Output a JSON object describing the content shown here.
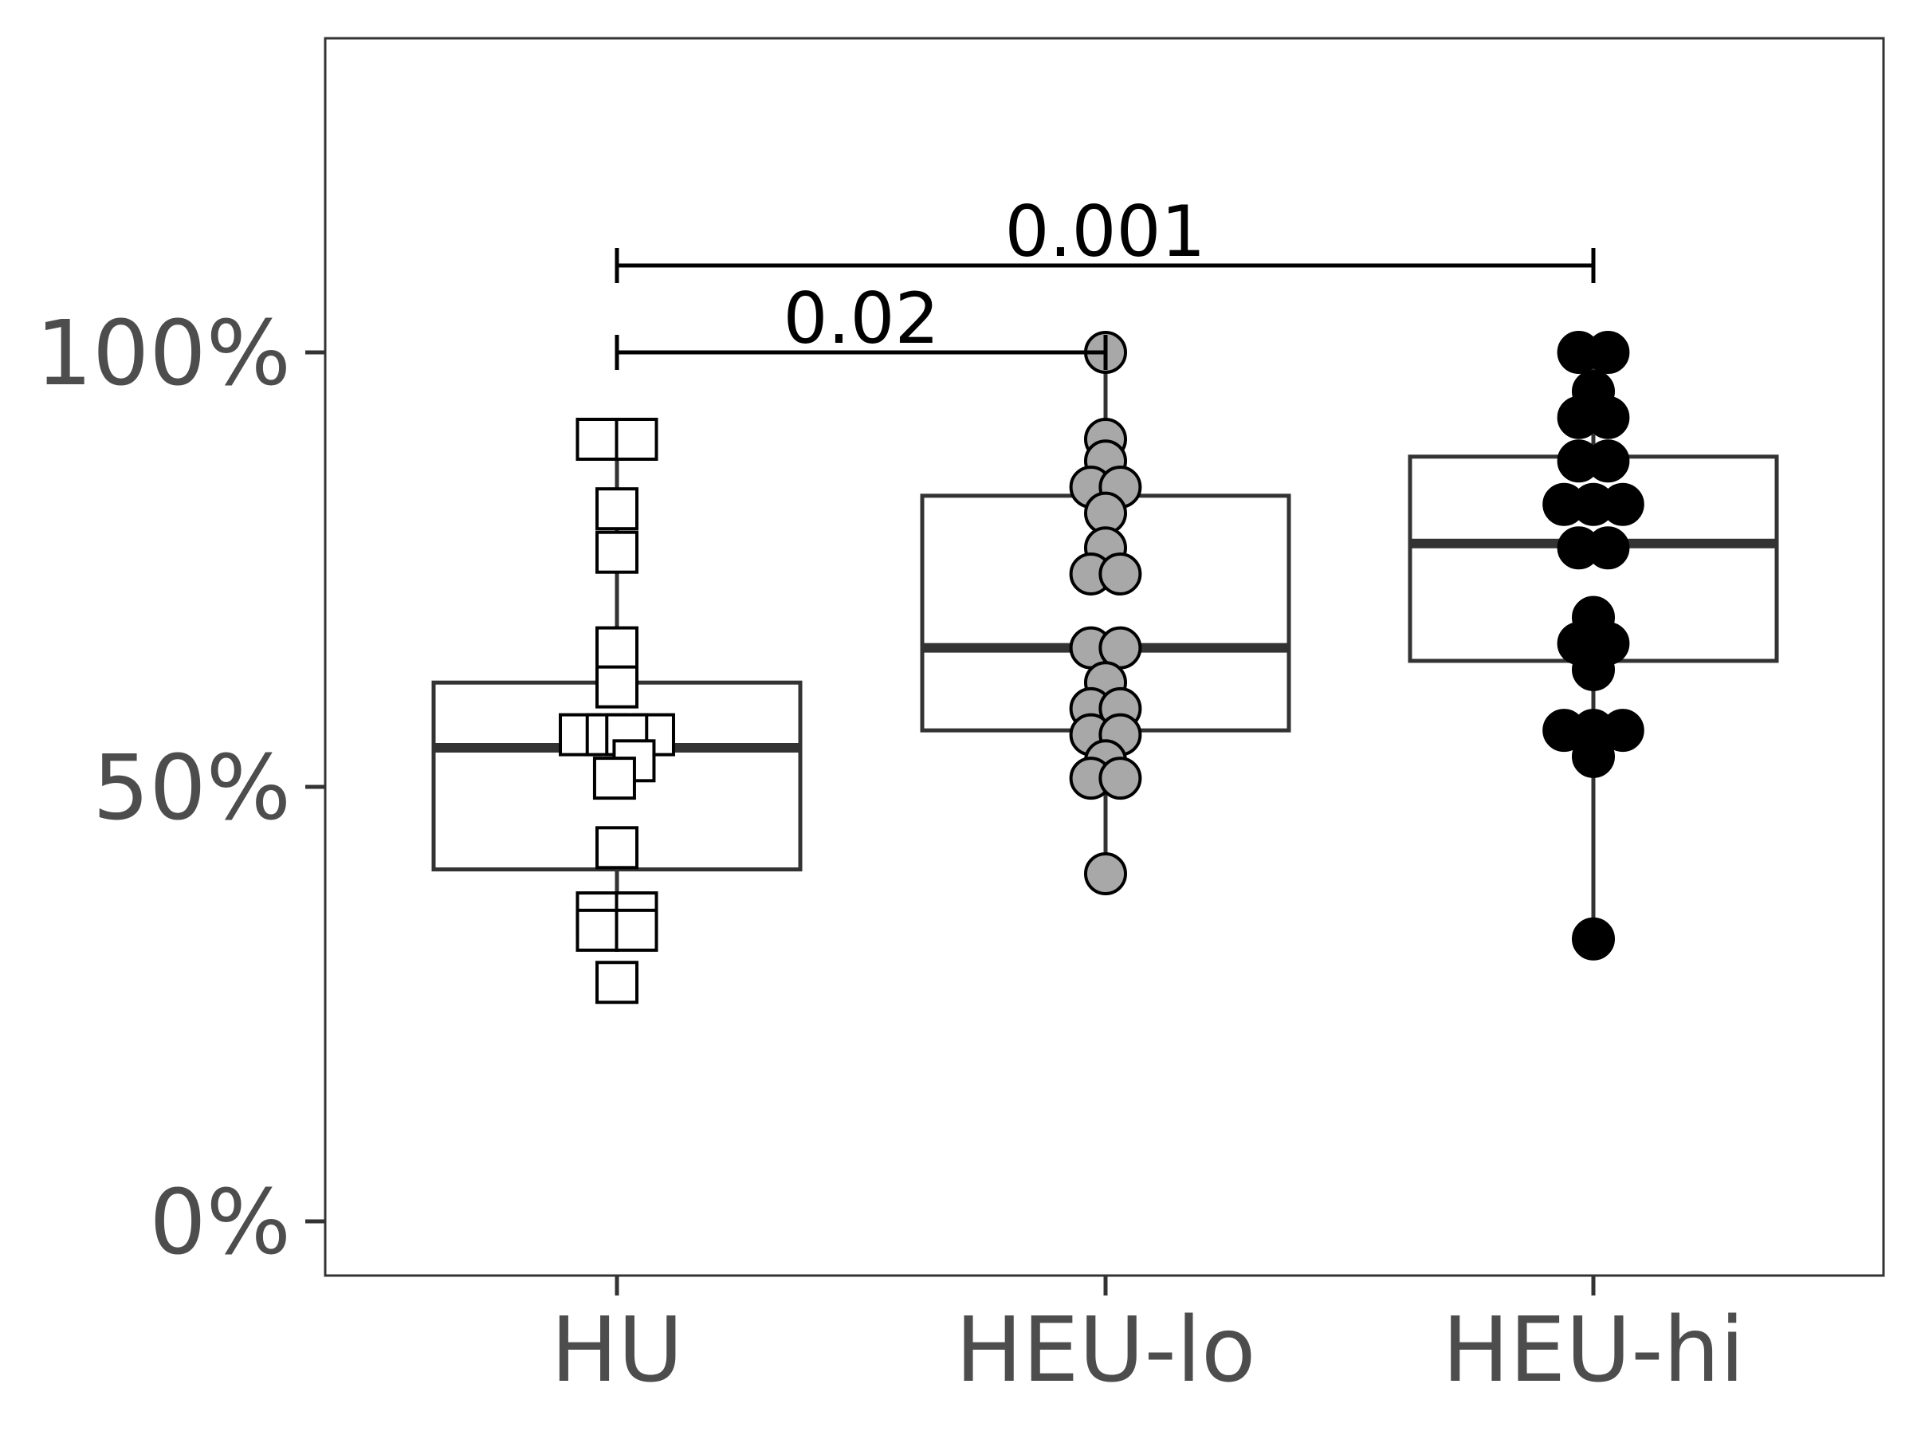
{
  "chart_data": {
    "type": "box",
    "categories": [
      "HU",
      "HEU-lo",
      "HEU-hi"
    ],
    "y_tick_labels": [
      "0%",
      "50%",
      "100%"
    ],
    "y_ticks": [
      0,
      50,
      100
    ],
    "ylim": [
      -6,
      136
    ],
    "xlabel": "",
    "ylabel": "",
    "grid": false,
    "legend": "none",
    "boxes": [
      {
        "category": "HU",
        "whisker_low": 33,
        "q1": 40.5,
        "median": 54.5,
        "q3": 62,
        "whisker_high": 90,
        "points": [
          {
            "y": 90,
            "dx": -0.04
          },
          {
            "y": 90,
            "dx": 0.04
          },
          {
            "y": 82,
            "dx": 0
          },
          {
            "y": 77,
            "dx": 0
          },
          {
            "y": 66,
            "dx": 0
          },
          {
            "y": 61.5,
            "dx": 0
          },
          {
            "y": 56,
            "dx": -0.075
          },
          {
            "y": 56,
            "dx": 0.075
          },
          {
            "y": 56,
            "dx": -0.02
          },
          {
            "y": 56,
            "dx": 0.02
          },
          {
            "y": 53,
            "dx": 0.035
          },
          {
            "y": 51,
            "dx": -0.005
          },
          {
            "y": 43,
            "dx": 0
          },
          {
            "y": 35.5,
            "dx": -0.04
          },
          {
            "y": 35.5,
            "dx": 0.04
          },
          {
            "y": 33.5,
            "dx": -0.04
          },
          {
            "y": 33.5,
            "dx": 0.04
          },
          {
            "y": 27.5,
            "dx": 0
          }
        ]
      },
      {
        "category": "HEU-lo",
        "whisker_low": 40,
        "q1": 56.5,
        "median": 66,
        "q3": 83.5,
        "whisker_high": 100,
        "points": [
          {
            "y": 100,
            "dx": 0
          },
          {
            "y": 90,
            "dx": 0
          },
          {
            "y": 87.5,
            "dx": 0
          },
          {
            "y": 84.5,
            "dx": -0.03
          },
          {
            "y": 84.5,
            "dx": 0.03
          },
          {
            "y": 81.5,
            "dx": 0
          },
          {
            "y": 77.5,
            "dx": 0
          },
          {
            "y": 74.5,
            "dx": -0.03
          },
          {
            "y": 74.5,
            "dx": 0.03
          },
          {
            "y": 66,
            "dx": -0.03
          },
          {
            "y": 66,
            "dx": 0.03
          },
          {
            "y": 62,
            "dx": 0
          },
          {
            "y": 59,
            "dx": -0.03
          },
          {
            "y": 59,
            "dx": 0.03
          },
          {
            "y": 56,
            "dx": -0.03
          },
          {
            "y": 56,
            "dx": 0.03
          },
          {
            "y": 53,
            "dx": 0
          },
          {
            "y": 51,
            "dx": -0.03
          },
          {
            "y": 51,
            "dx": 0.03
          },
          {
            "y": 40,
            "dx": 0
          }
        ]
      },
      {
        "category": "HEU-hi",
        "whisker_low": 32,
        "q1": 64.5,
        "median": 78,
        "q3": 88,
        "whisker_high": 100,
        "points": [
          {
            "y": 100,
            "dx": -0.03
          },
          {
            "y": 100,
            "dx": 0.03
          },
          {
            "y": 95.5,
            "dx": 0
          },
          {
            "y": 92.5,
            "dx": -0.03
          },
          {
            "y": 92.5,
            "dx": 0.03
          },
          {
            "y": 87.5,
            "dx": -0.03
          },
          {
            "y": 87.5,
            "dx": 0.03
          },
          {
            "y": 82.5,
            "dx": -0.06
          },
          {
            "y": 82.5,
            "dx": 0
          },
          {
            "y": 82.5,
            "dx": 0.06
          },
          {
            "y": 77.5,
            "dx": -0.03
          },
          {
            "y": 77.5,
            "dx": 0.03
          },
          {
            "y": 69.5,
            "dx": 0
          },
          {
            "y": 66.5,
            "dx": -0.03
          },
          {
            "y": 66.5,
            "dx": 0.03
          },
          {
            "y": 63.5,
            "dx": 0
          },
          {
            "y": 56.5,
            "dx": -0.06
          },
          {
            "y": 56.5,
            "dx": 0.06
          },
          {
            "y": 56.5,
            "dx": 0
          },
          {
            "y": 53.5,
            "dx": 0
          },
          {
            "y": 32.5,
            "dx": 0
          }
        ]
      }
    ],
    "series_styles": [
      {
        "category": "HU",
        "shape": "square",
        "fill": "#ffffff",
        "stroke": "#000000"
      },
      {
        "category": "HEU-lo",
        "shape": "circle",
        "fill": "#a8a8a8",
        "stroke": "#000000"
      },
      {
        "category": "HEU-hi",
        "shape": "circle",
        "fill": "#000000",
        "stroke": "#000000"
      }
    ],
    "comparisons": [
      {
        "from": "HU",
        "to": "HEU-lo",
        "y": 100,
        "label": "0.02"
      },
      {
        "from": "HU",
        "to": "HEU-hi",
        "y": 110,
        "label": "0.001"
      }
    ]
  }
}
